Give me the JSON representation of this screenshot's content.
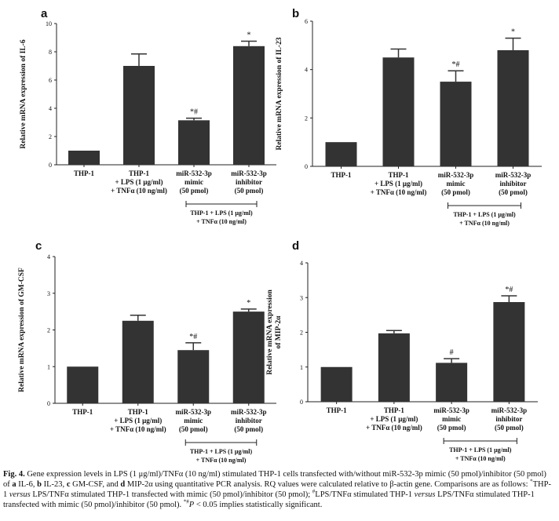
{
  "chart_data": [
    {
      "type": "bar",
      "panel": "a",
      "ylabel": "Relative mRNA expression of IL-6",
      "categories": [
        "THP-1",
        "THP-1\n+ LPS (1 μg/ml)\n+ TNFα (10 ng/ml)",
        "miR-532-3p\nmimic\n(50 pmol)",
        "miR-532-3p\ninhibitor\n(50 pmol)"
      ],
      "values": [
        1,
        7.0,
        3.15,
        8.4
      ],
      "errors": [
        null,
        0.85,
        0.15,
        0.35
      ],
      "annotations": [
        null,
        null,
        "*#",
        "*"
      ],
      "group_label": "THP-1 + LPS (1 μg/ml)\n+ TNFα (10 ng/ml)",
      "color": "#333333",
      "ylim": [
        0,
        10
      ],
      "yticks": [
        0,
        2,
        4,
        6,
        8,
        10
      ]
    },
    {
      "type": "bar",
      "panel": "b",
      "ylabel": "Relative mRNA expression of IL-23",
      "categories": [
        "THP-1",
        "THP-1\n+ LPS (1 μg/ml)\n+ TNFα (10 ng/ml)",
        "miR-532-3p\nmimic\n(50 pmol)",
        "miR-532-3p\ninhibitor\n(50 pmol)"
      ],
      "values": [
        1,
        4.5,
        3.5,
        4.8
      ],
      "errors": [
        null,
        0.35,
        0.45,
        0.5
      ],
      "annotations": [
        null,
        null,
        "*#",
        "*"
      ],
      "group_label": "THP-1 + LPS (1 μg/ml)\n+ TNFα (10 ng/ml)",
      "color": "#333333",
      "ylim": [
        0,
        6
      ],
      "yticks": [
        0,
        2,
        4,
        6
      ]
    },
    {
      "type": "bar",
      "panel": "c",
      "ylabel": "Relative mRNA expression of GM-CSF",
      "categories": [
        "THP-1",
        "THP-1\n+ LPS (1 μg/ml)\n+ TNFα (10 ng/ml)",
        "miR-532-3p\nmimic\n(50 pmol)",
        "miR-532-3p\ninhibitor\n(50 pmol)"
      ],
      "values": [
        1,
        2.25,
        1.45,
        2.5
      ],
      "errors": [
        null,
        0.15,
        0.2,
        0.07
      ],
      "annotations": [
        null,
        null,
        "*#",
        "*"
      ],
      "group_label": "THP-1 + LPS (1 μg/ml)\n+ TNFα (10 ng/ml)",
      "color": "#333333",
      "ylim": [
        0,
        4
      ],
      "yticks": [
        0,
        1,
        2,
        3,
        4
      ]
    },
    {
      "type": "bar",
      "panel": "d",
      "ylabel": "Relative mRNA expression\nof MIP-2α",
      "categories": [
        "THP-1",
        "THP-1\n+ LPS (1 μg/ml)\n+ TNFα (10 ng/ml)",
        "miR-532-3p\nmimic\n(50 pmol)",
        "miR-532-3p\ninhibitor\n(50 pmol)"
      ],
      "values": [
        1,
        1.97,
        1.12,
        2.87
      ],
      "errors": [
        null,
        0.08,
        0.12,
        0.18
      ],
      "annotations": [
        null,
        null,
        "#",
        "*#"
      ],
      "group_label": "THP-1 + LPS (1 μg/ml)\n+ TNFα (10 ng/ml)",
      "color": "#333333",
      "ylim": [
        0,
        4
      ],
      "yticks": [
        0,
        1,
        2,
        3,
        4
      ]
    }
  ],
  "caption": {
    "parts": [
      "Fig. 4.",
      " Gene expression levels in LPS (1 μg/ml)/TNFα (10 ng/ml) stimulated THP-1 cells transfected with/without miR-532-3p mimic (50 pmol)/inhibitor (50 pmol) of ",
      "a",
      " IL-6, ",
      "b",
      " IL-23, ",
      "c",
      " GM-CSF, and ",
      "d",
      " MIP-2α using quantitative PCR analysis. RQ values were calculated relative to β-actin gene. Comparisons are as follows: ",
      "*",
      "THP-1 ",
      "versus",
      " LPS/TNFα stimulated THP-1 transfected with mimic (50 pmol)/inhibitor (50 pmol); ",
      "#",
      "LPS/TNFα stimulated THP-1 ",
      "versus",
      " LPS/TNFα stimulated THP-1 transfected with mimic (50 pmol)/inhibitor (50 pmol). ",
      "*#",
      "P",
      " < 0.05 implies statistically significant."
    ]
  }
}
